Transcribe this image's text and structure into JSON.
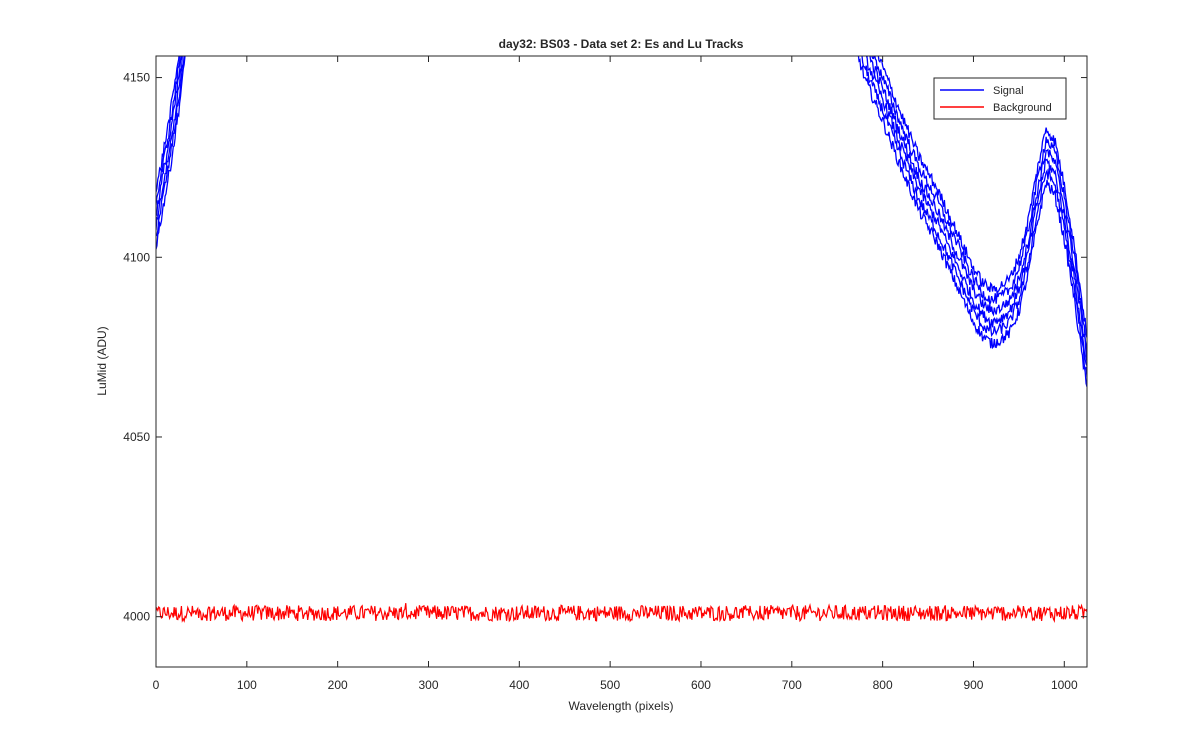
{
  "chart_data": {
    "type": "line",
    "title": "day32: BS03 - Data set 2: Es and Lu Tracks",
    "xlabel": "Wavelength (pixels)",
    "ylabel": "LuMid (ADU)",
    "xlim": [
      0,
      1025
    ],
    "ylim": [
      3986,
      4156
    ],
    "xticks": [
      0,
      100,
      200,
      300,
      400,
      500,
      600,
      700,
      800,
      900,
      1000
    ],
    "yticks": [
      4000,
      4050,
      4100,
      4150
    ],
    "grid": false,
    "legend_position": "top-right",
    "legend": [
      "Signal",
      "Background"
    ],
    "series": [
      {
        "name": "Signal",
        "color": "#0000ff",
        "visible_segments": [
          {
            "x": [
              0,
              5,
              10,
              15,
              20,
              25,
              30,
              35
            ],
            "y": [
              4110,
              4117,
              4124,
              4131,
              4139,
              4148,
              4158,
              4170
            ]
          },
          {
            "x": [
              765,
              780,
              800,
              820,
              840,
              860,
              880,
              900,
              910,
              920,
              930,
              940,
              950,
              960,
              970,
              980,
              990,
              1000,
              1010,
              1020,
              1025
            ],
            "y": [
              4170,
              4157,
              4145,
              4132,
              4120,
              4111,
              4100,
              4089,
              4085,
              4083,
              4084,
              4086,
              4092,
              4102,
              4116,
              4128,
              4124,
              4112,
              4097,
              4079,
              4070
            ]
          }
        ],
        "track_count": 6
      },
      {
        "name": "Background",
        "color": "#ff0000",
        "x_range": [
          0,
          1025
        ],
        "y_mean": 4001,
        "y_noise_range": [
          3997,
          4005
        ]
      }
    ]
  }
}
